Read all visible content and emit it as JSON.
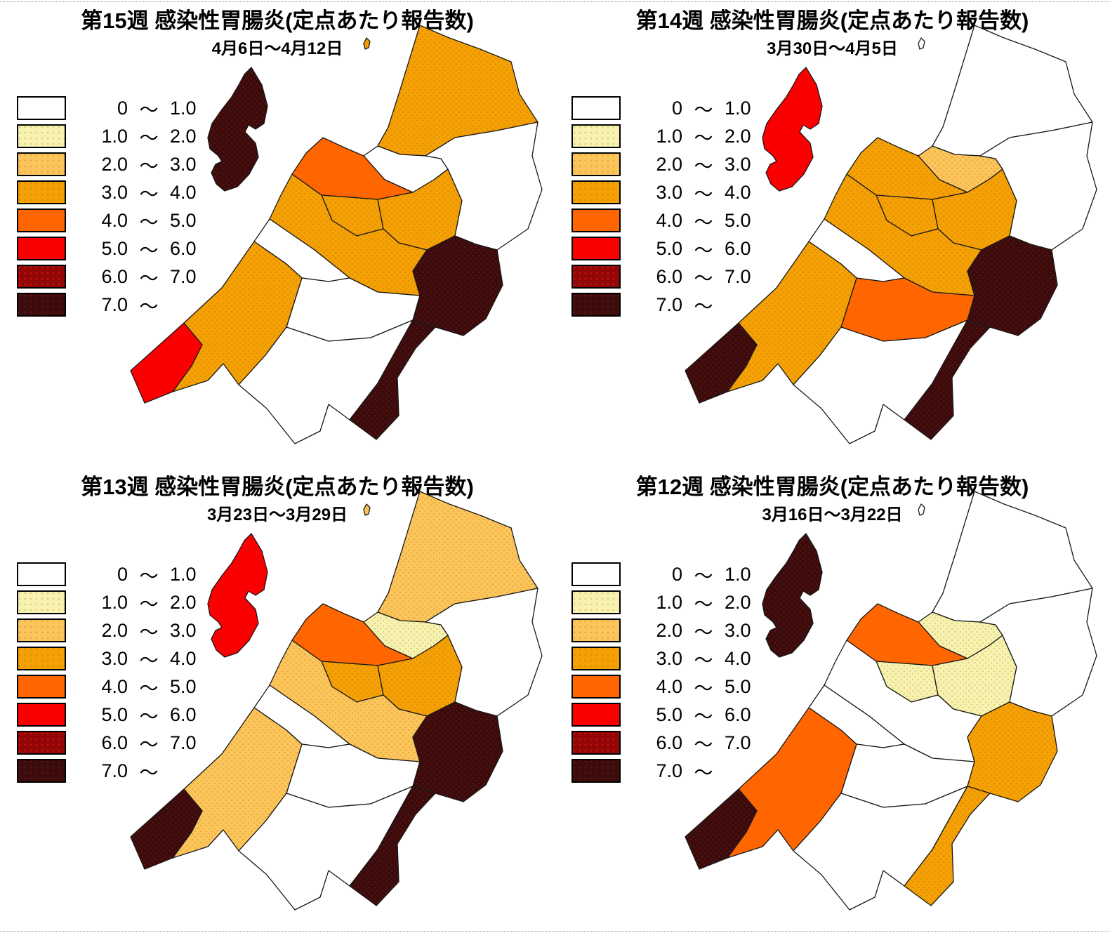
{
  "page": {
    "background": "#FFFFFF"
  },
  "legend": {
    "tilde": "～",
    "rows": [
      {
        "lo": "0",
        "hi": "1.0",
        "color": "#FFFFFF"
      },
      {
        "lo": "1.0",
        "hi": "2.0",
        "color": "#F8F2B0"
      },
      {
        "lo": "2.0",
        "hi": "3.0",
        "color": "#FBC55B"
      },
      {
        "lo": "3.0",
        "hi": "4.0",
        "color": "#F5A005"
      },
      {
        "lo": "4.0",
        "hi": "5.0",
        "color": "#FF6600"
      },
      {
        "lo": "5.0",
        "hi": "6.0",
        "color": "#FB0000"
      },
      {
        "lo": "6.0",
        "hi": "7.0",
        "color": "#930606"
      },
      {
        "lo": "7.0",
        "hi": "",
        "color": "#3C0B0B"
      }
    ]
  },
  "panels": [
    {
      "title": "第15週 感染性胃腸炎(定点あたり報告数)",
      "date_range": "4月6日～4月12日",
      "region_classes": {
        "sado-island": 7,
        "awashima-island": 3,
        "murakami-north": 3,
        "shibata": 0,
        "niigata-city": 4,
        "kamo": 3,
        "gosen": 3,
        "aga-inland-east": 0,
        "sanjo": 3,
        "kashiwazaki-wedge": 0,
        "nagaoka-central": 0,
        "joetsu-coast": 3,
        "itoigawa-southwest": 5,
        "tokamachi-south": 0,
        "uonuma": 7,
        "minami-uonuma-tail": 7
      }
    },
    {
      "title": "第14週 感染性胃腸炎(定点あたり報告数)",
      "date_range": "3月30日～4月5日",
      "region_classes": {
        "sado-island": 5,
        "awashima-island": 0,
        "murakami-north": 0,
        "shibata": 2,
        "niigata-city": 3,
        "kamo": 3,
        "gosen": 3,
        "aga-inland-east": 0,
        "sanjo": 3,
        "kashiwazaki-wedge": 0,
        "nagaoka-central": 4,
        "joetsu-coast": 3,
        "itoigawa-southwest": 7,
        "tokamachi-south": 0,
        "uonuma": 7,
        "minami-uonuma-tail": 7
      }
    },
    {
      "title": "第13週 感染性胃腸炎(定点あたり報告数)",
      "date_range": "3月23日～3月29日",
      "region_classes": {
        "sado-island": 5,
        "awashima-island": 2,
        "murakami-north": 2,
        "shibata": 1,
        "niigata-city": 4,
        "kamo": 3,
        "gosen": 3,
        "aga-inland-east": 0,
        "sanjo": 2,
        "kashiwazaki-wedge": 0,
        "nagaoka-central": 0,
        "joetsu-coast": 2,
        "itoigawa-southwest": 7,
        "tokamachi-south": 0,
        "uonuma": 7,
        "minami-uonuma-tail": 7
      }
    },
    {
      "title": "第12週 感染性胃腸炎(定点あたり報告数)",
      "date_range": "3月16日～3月22日",
      "region_classes": {
        "sado-island": 7,
        "awashima-island": 0,
        "murakami-north": 0,
        "shibata": 1,
        "niigata-city": 4,
        "kamo": 1,
        "gosen": 1,
        "aga-inland-east": 0,
        "sanjo": 0,
        "kashiwazaki-wedge": 0,
        "nagaoka-central": 0,
        "joetsu-coast": 4,
        "itoigawa-southwest": 7,
        "tokamachi-south": 0,
        "uonuma": 3,
        "minami-uonuma-tail": 3
      }
    }
  ]
}
